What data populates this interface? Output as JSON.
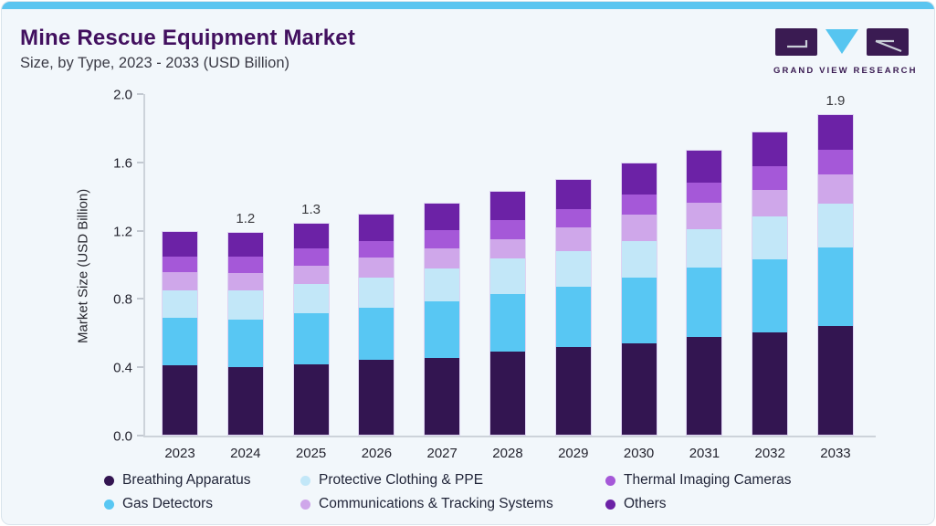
{
  "header": {
    "title": "Mine Rescue Equipment Market",
    "subtitle": "Size, by Type, 2023 - 2033 (USD Billion)"
  },
  "logo": {
    "text": "GRAND VIEW RESEARCH",
    "dark_color": "#3a1b52",
    "blue_color": "#56c5f0"
  },
  "chart_data": {
    "type": "bar",
    "stacked": true,
    "title": "Mine Rescue Equipment Market Size, by Type, 2023 - 2033 (USD Billion)",
    "xlabel": "",
    "ylabel": "Market Size (USD Billion)",
    "ylim": [
      0,
      2.0
    ],
    "yticks": [
      "0.0",
      "0.4",
      "0.8",
      "1.2",
      "1.6",
      "2.0"
    ],
    "grid": false,
    "legend_position": "bottom",
    "categories": [
      "2023",
      "2024",
      "2025",
      "2026",
      "2027",
      "2028",
      "2029",
      "2030",
      "2031",
      "2032",
      "2033"
    ],
    "series": [
      {
        "name": "Breathing Apparatus",
        "color": "#331551",
        "values": [
          0.41,
          0.4,
          0.415,
          0.44,
          0.455,
          0.49,
          0.515,
          0.54,
          0.575,
          0.6,
          0.64
        ]
      },
      {
        "name": "Gas Detectors",
        "color": "#58c7f3",
        "values": [
          0.28,
          0.28,
          0.3,
          0.31,
          0.33,
          0.34,
          0.36,
          0.385,
          0.41,
          0.435,
          0.46
        ]
      },
      {
        "name": "Protective Clothing & PPE",
        "color": "#c2e7f8",
        "values": [
          0.165,
          0.17,
          0.175,
          0.175,
          0.195,
          0.21,
          0.21,
          0.215,
          0.225,
          0.25,
          0.26
        ]
      },
      {
        "name": "Communications & Tracking Systems",
        "color": "#cfa7ea",
        "values": [
          0.105,
          0.105,
          0.11,
          0.12,
          0.12,
          0.115,
          0.14,
          0.155,
          0.155,
          0.155,
          0.175
        ]
      },
      {
        "name": "Thermal Imaging Cameras",
        "color": "#a558d8",
        "values": [
          0.09,
          0.095,
          0.1,
          0.1,
          0.105,
          0.11,
          0.105,
          0.12,
          0.12,
          0.14,
          0.145
        ]
      },
      {
        "name": "Others",
        "color": "#6c22a6",
        "values": [
          0.15,
          0.145,
          0.145,
          0.155,
          0.16,
          0.17,
          0.175,
          0.185,
          0.19,
          0.2,
          0.205
        ]
      }
    ],
    "bar_labels": {
      "2024": "1.2",
      "2025": "1.3",
      "2033": "1.9"
    },
    "legend_order": [
      "Breathing Apparatus",
      "Protective Clothing & PPE",
      "Thermal Imaging Cameras",
      "Gas Detectors",
      "Communications & Tracking Systems",
      "Others"
    ]
  }
}
